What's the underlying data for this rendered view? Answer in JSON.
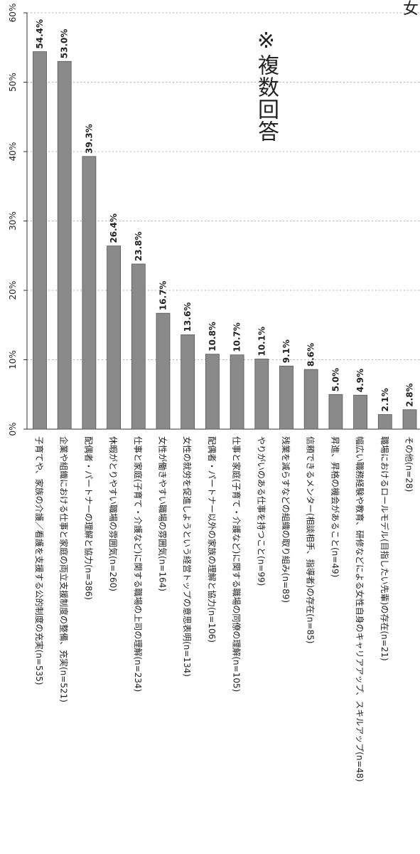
{
  "chart_data": {
    "type": "bar",
    "orientation": "vertical",
    "note": "※複数回答",
    "corner_text": "女",
    "ylim": [
      0,
      60
    ],
    "yticks": [
      "0%",
      "10%",
      "20%",
      "30%",
      "40%",
      "50%",
      "60%"
    ],
    "grid": true,
    "bar_color": "#8a8a8a",
    "categories": [
      "子育てや、家族の介護／看護を支援する公的制度の充実(n=535)",
      "企業や組織における仕事と家庭の両立支援制度の整備、充実(n=521)",
      "配偶者・パートナーの理解と協力(n=386)",
      "休暇がとりやすい職場の雰囲気(n=260)",
      "仕事と家庭(子育て・介護など)に関する職場の上司の理解(n=234)",
      "女性が働きやすい職場の雰囲気(n=164)",
      "女性の就労を促進しようという経営トップの意思表明(n=134)",
      "配偶者・パートナー以外の家族の理解と協力(n=106)",
      "仕事と家庭(子育て・介護など)に関する職場の同僚の理解(n=105)",
      "やりがいのある仕事を持つこと(n=99)",
      "残業を減らすなどの組織の取り組み(n=89)",
      "信頼できるメンター(相談相手、指導者)の存在(n=85)",
      "昇進、昇格の機会があること(n=49)",
      "幅広い職務経験や教育、研修などによる女性自身のキャリアアップ、スキルアップ(n=48)",
      "職場におけるロールモデル(目指したい先輩)の存在(n=21)",
      "その他(n=28)"
    ],
    "values": [
      54.4,
      53.0,
      39.3,
      26.4,
      23.8,
      16.7,
      13.6,
      10.8,
      10.7,
      10.1,
      9.1,
      8.6,
      5.0,
      4.9,
      2.1,
      2.8
    ],
    "value_labels": [
      "54.4%",
      "53.0%",
      "39.3%",
      "26.4%",
      "23.8%",
      "16.7%",
      "13.6%",
      "10.8%",
      "10.7%",
      "10.1%",
      "9.1%",
      "8.6%",
      "5.0%",
      "4.9%",
      "2.1%",
      "2.8%"
    ]
  }
}
